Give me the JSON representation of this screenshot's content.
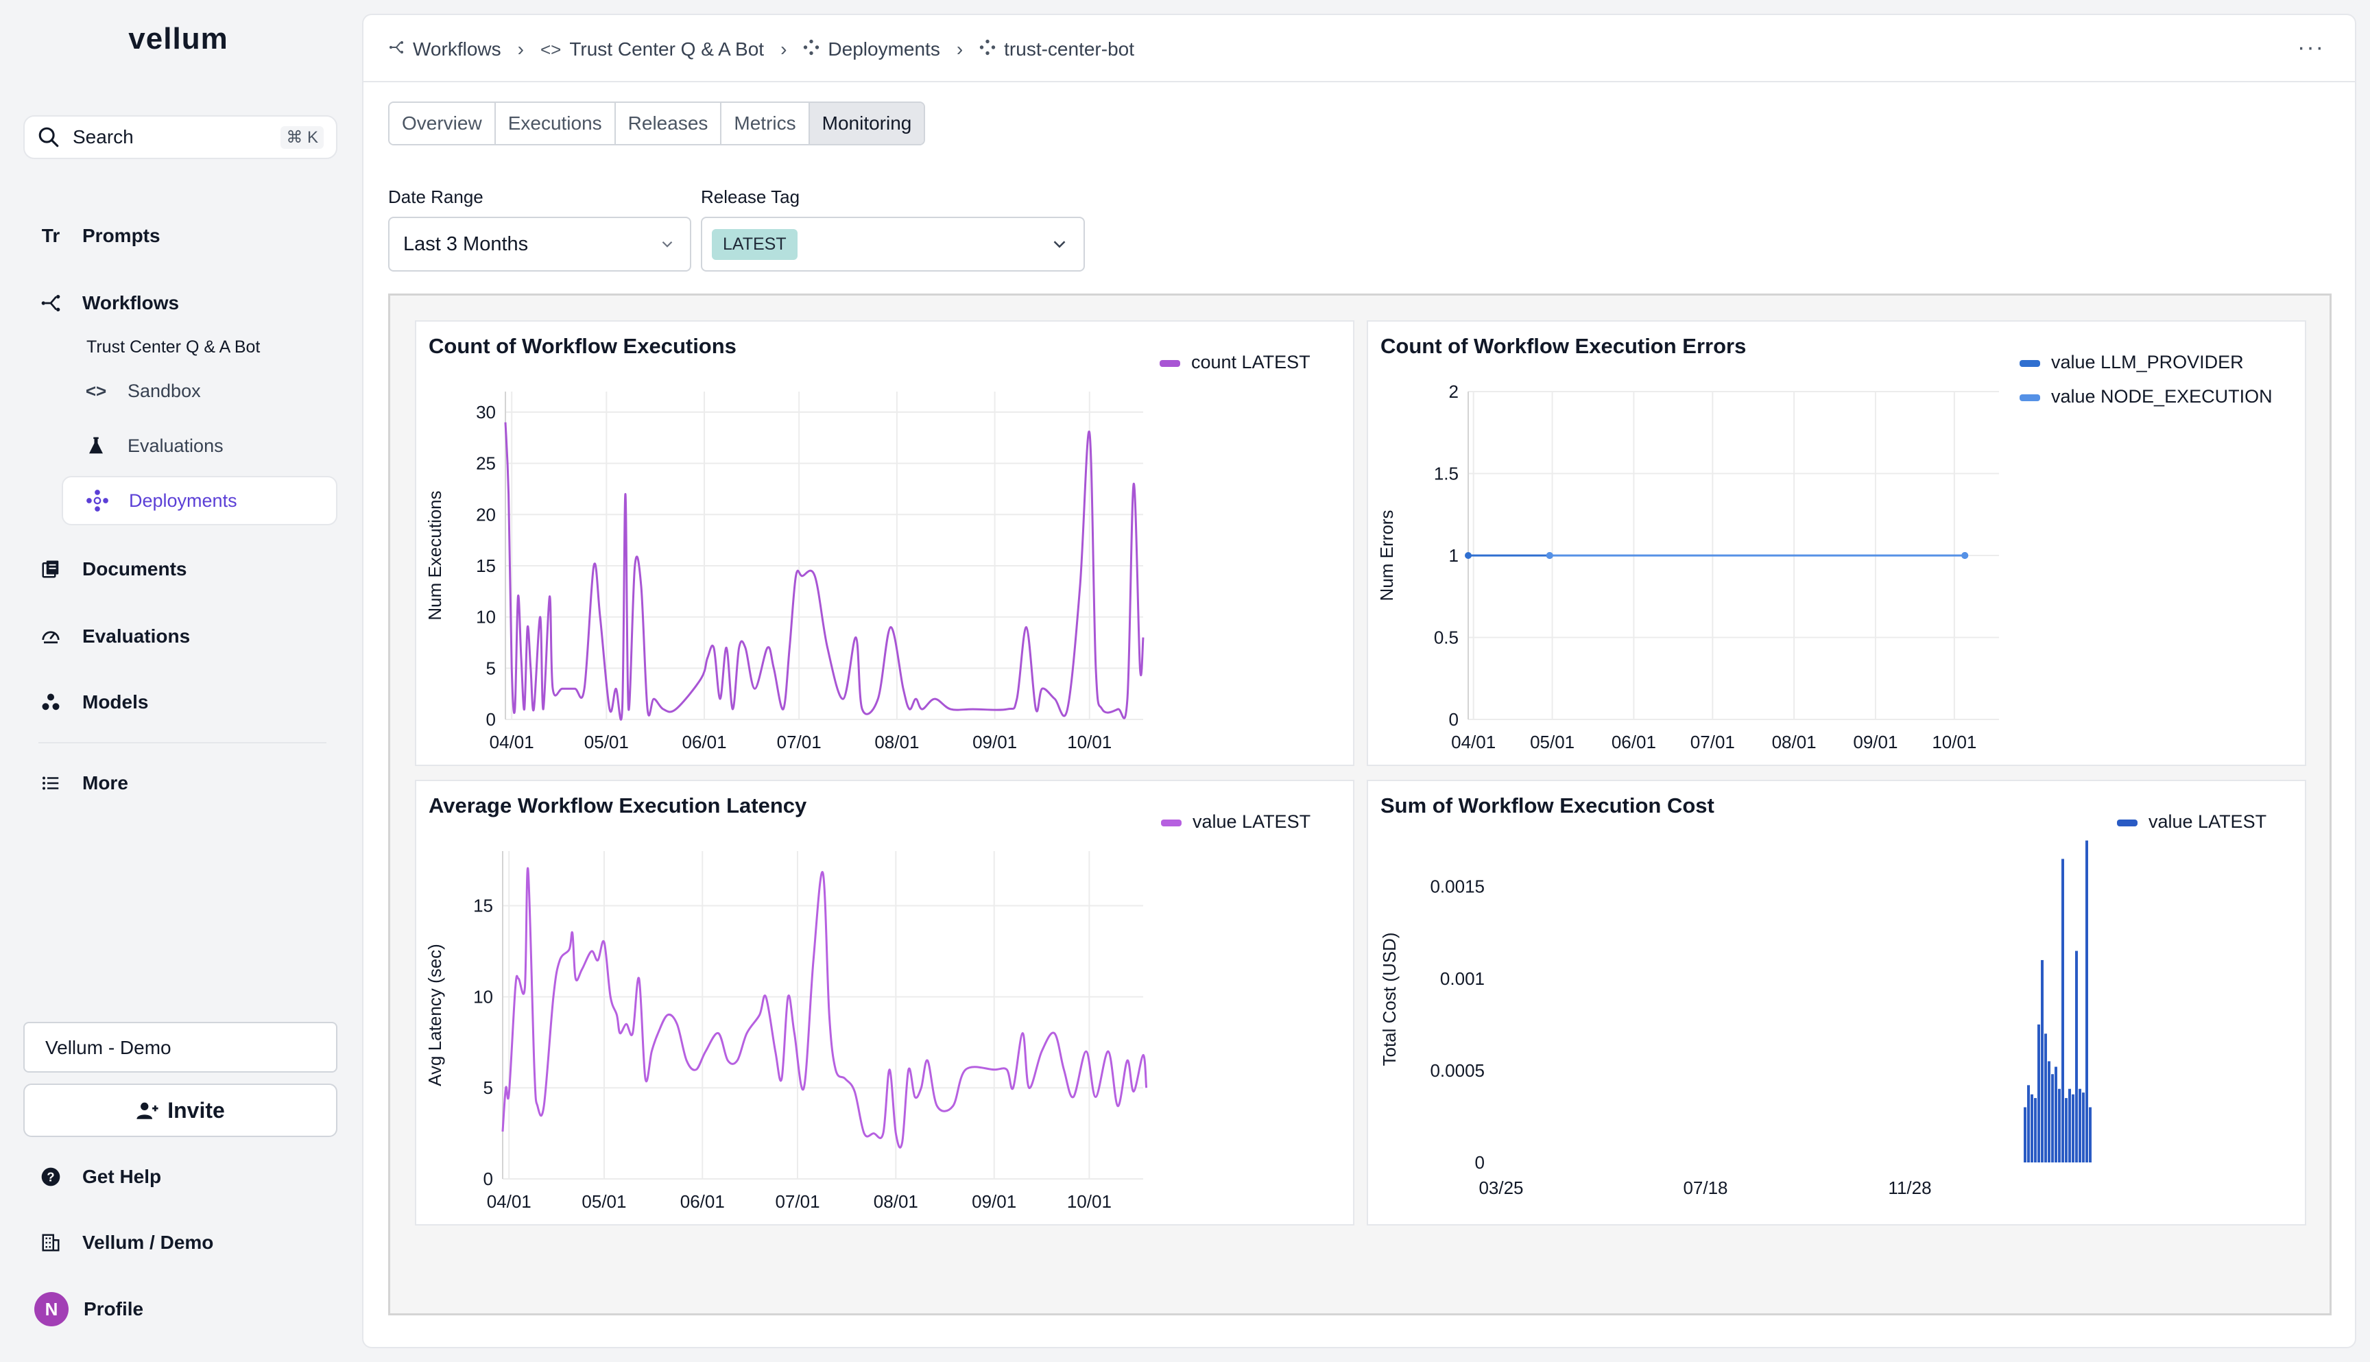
{
  "sidebar": {
    "logo": "vellum",
    "search": {
      "label": "Search",
      "shortcut": "⌘ K"
    },
    "nav": {
      "prompts": "Prompts",
      "workflows": "Workflows",
      "workflow_name": "Trust Center Q & A Bot",
      "sandbox": "Sandbox",
      "evaluations_sub": "Evaluations",
      "deployments": "Deployments",
      "documents": "Documents",
      "evaluations": "Evaluations",
      "models": "Models",
      "more": "More"
    },
    "workspace": "Vellum - Demo",
    "invite": "Invite",
    "get_help": "Get Help",
    "org": "Vellum / Demo",
    "profile": "Profile",
    "avatar_initial": "N",
    "accent_color": "#5b3fd6"
  },
  "header": {
    "breadcrumb": [
      "Workflows",
      "Trust Center Q & A Bot",
      "Deployments",
      "trust-center-bot"
    ],
    "tabs": [
      "Overview",
      "Executions",
      "Releases",
      "Metrics",
      "Monitoring"
    ],
    "active_tab": "Monitoring"
  },
  "filters": {
    "date_range_label": "Date Range",
    "date_range_value": "Last 3 Months",
    "release_tag_label": "Release Tag",
    "release_tag_value": "LATEST"
  },
  "chart_data": [
    {
      "type": "line",
      "title": "Count of Workflow Executions",
      "ylabel": "Num Executions",
      "xlabel": "",
      "ylim": [
        0,
        32
      ],
      "yticks": [
        0,
        5,
        10,
        15,
        20,
        25,
        30
      ],
      "xticks": [
        "04/01",
        "05/01",
        "06/01",
        "07/01",
        "08/01",
        "09/01",
        "10/01"
      ],
      "x_start": "03/30",
      "x_end": "10/18",
      "legend_position": "top-right",
      "series": [
        {
          "name": "count LATEST",
          "color": "#a855d4",
          "points": [
            [
              "03/30",
              29
            ],
            [
              "03/31",
              22
            ],
            [
              "04/01",
              5
            ],
            [
              "04/02",
              1
            ],
            [
              "04/03",
              12
            ],
            [
              "04/04",
              6
            ],
            [
              "04/05",
              1
            ],
            [
              "04/06",
              9
            ],
            [
              "04/07",
              5
            ],
            [
              "04/08",
              1
            ],
            [
              "04/10",
              10
            ],
            [
              "04/11",
              1
            ],
            [
              "04/13",
              12
            ],
            [
              "04/14",
              3
            ],
            [
              "04/17",
              3
            ],
            [
              "04/21",
              3
            ],
            [
              "04/24",
              3
            ],
            [
              "04/27",
              15
            ],
            [
              "04/29",
              10
            ],
            [
              "05/02",
              1
            ],
            [
              "05/04",
              3
            ],
            [
              "05/06",
              1
            ],
            [
              "05/07",
              22
            ],
            [
              "05/08",
              1
            ],
            [
              "05/10",
              15
            ],
            [
              "05/12",
              13
            ],
            [
              "05/14",
              1
            ],
            [
              "05/16",
              2
            ],
            [
              "05/19",
              1
            ],
            [
              "05/23",
              1
            ],
            [
              "05/31",
              4
            ],
            [
              "06/02",
              6
            ],
            [
              "06/04",
              7
            ],
            [
              "06/06",
              2
            ],
            [
              "06/08",
              7
            ],
            [
              "06/10",
              1
            ],
            [
              "06/12",
              7
            ],
            [
              "06/14",
              7
            ],
            [
              "06/17",
              3
            ],
            [
              "06/21",
              7
            ],
            [
              "06/23",
              5
            ],
            [
              "06/26",
              1
            ],
            [
              "06/28",
              7
            ],
            [
              "06/30",
              14
            ],
            [
              "07/02",
              14
            ],
            [
              "07/06",
              14
            ],
            [
              "07/10",
              7
            ],
            [
              "07/15",
              2
            ],
            [
              "07/19",
              8
            ],
            [
              "07/21",
              1
            ],
            [
              "07/26",
              2
            ],
            [
              "07/30",
              9
            ],
            [
              "08/03",
              3
            ],
            [
              "08/05",
              1
            ],
            [
              "08/07",
              2
            ],
            [
              "08/09",
              1
            ],
            [
              "08/13",
              2
            ],
            [
              "08/18",
              1
            ],
            [
              "08/25",
              1
            ],
            [
              "09/05",
              1
            ],
            [
              "09/08",
              2
            ],
            [
              "09/11",
              9
            ],
            [
              "09/14",
              1
            ],
            [
              "09/16",
              3
            ],
            [
              "09/20",
              2
            ],
            [
              "09/24",
              1
            ],
            [
              "09/28",
              13
            ],
            [
              "10/01",
              28
            ],
            [
              "10/03",
              5
            ],
            [
              "10/05",
              1
            ],
            [
              "10/10",
              1
            ],
            [
              "10/13",
              2
            ],
            [
              "10/15",
              23
            ],
            [
              "10/17",
              5
            ],
            [
              "10/18",
              8
            ]
          ]
        }
      ]
    },
    {
      "type": "line",
      "title": "Count of Workflow Execution Errors",
      "ylabel": "Num Errors",
      "xlabel": "",
      "ylim": [
        0,
        2
      ],
      "yticks": [
        0,
        0.5,
        1,
        1.5,
        2
      ],
      "xticks": [
        "04/01",
        "05/01",
        "06/01",
        "07/01",
        "08/01",
        "09/01",
        "10/01"
      ],
      "x_start": "03/30",
      "x_end": "10/18",
      "legend_position": "top-right",
      "series": [
        {
          "name": "value LLM_PROVIDER",
          "color": "#2f6fd0",
          "points": [
            [
              "03/30",
              1
            ],
            [
              "04/30",
              1
            ],
            [
              "10/05",
              1
            ]
          ]
        },
        {
          "name": "value NODE_EXECUTION",
          "color": "#5591e6",
          "points": [
            [
              "04/30",
              1
            ],
            [
              "10/05",
              1
            ]
          ]
        }
      ]
    },
    {
      "type": "line",
      "title": "Average Workflow Execution Latency",
      "ylabel": "Avg Latency (sec)",
      "xlabel": "",
      "ylim": [
        0,
        18
      ],
      "yticks": [
        0,
        5,
        10,
        15
      ],
      "xticks": [
        "04/01",
        "05/01",
        "06/01",
        "07/01",
        "08/01",
        "09/01",
        "10/01"
      ],
      "x_start": "03/30",
      "x_end": "10/18",
      "legend_position": "top-right",
      "series": [
        {
          "name": "value LATEST",
          "color": "#b660e0",
          "points": [
            [
              "03/30",
              2.6
            ],
            [
              "03/31",
              5
            ],
            [
              "04/01",
              4.7
            ],
            [
              "04/03",
              10.5
            ],
            [
              "04/04",
              11
            ],
            [
              "04/06",
              10.5
            ],
            [
              "04/07",
              17
            ],
            [
              "04/09",
              6
            ],
            [
              "04/10",
              4
            ],
            [
              "04/12",
              4
            ],
            [
              "04/15",
              10
            ],
            [
              "04/17",
              12
            ],
            [
              "04/20",
              12.6
            ],
            [
              "04/21",
              13.5
            ],
            [
              "04/22",
              11
            ],
            [
              "04/24",
              11.5
            ],
            [
              "04/27",
              12.5
            ],
            [
              "04/29",
              12
            ],
            [
              "05/01",
              13
            ],
            [
              "05/03",
              10
            ],
            [
              "05/05",
              9
            ],
            [
              "05/06",
              8
            ],
            [
              "05/08",
              8.5
            ],
            [
              "05/10",
              8
            ],
            [
              "05/12",
              11
            ],
            [
              "05/14",
              5.5
            ],
            [
              "05/16",
              7
            ],
            [
              "05/18",
              8
            ],
            [
              "05/21",
              9
            ],
            [
              "05/24",
              8.5
            ],
            [
              "05/27",
              6.5
            ],
            [
              "05/30",
              6
            ],
            [
              "06/02",
              7
            ],
            [
              "06/06",
              8
            ],
            [
              "06/09",
              6.5
            ],
            [
              "06/12",
              6.5
            ],
            [
              "06/15",
              8
            ],
            [
              "06/19",
              9
            ],
            [
              "06/21",
              10
            ],
            [
              "06/24",
              7
            ],
            [
              "06/26",
              5.5
            ],
            [
              "06/28",
              10
            ],
            [
              "06/30",
              8
            ],
            [
              "07/03",
              5
            ],
            [
              "07/06",
              12
            ],
            [
              "07/09",
              16.8
            ],
            [
              "07/11",
              9
            ],
            [
              "07/13",
              6
            ],
            [
              "07/16",
              5.5
            ],
            [
              "07/19",
              4.8
            ],
            [
              "07/22",
              2.5
            ],
            [
              "07/25",
              2.5
            ],
            [
              "07/28",
              2.5
            ],
            [
              "07/30",
              6
            ],
            [
              "08/01",
              2.5
            ],
            [
              "08/03",
              2
            ],
            [
              "08/05",
              6
            ],
            [
              "08/07",
              4.5
            ],
            [
              "08/09",
              5
            ],
            [
              "08/11",
              6.5
            ],
            [
              "08/14",
              4
            ],
            [
              "08/19",
              4
            ],
            [
              "08/23",
              6
            ],
            [
              "09/01",
              6
            ],
            [
              "09/05",
              6
            ],
            [
              "09/07",
              5
            ],
            [
              "09/10",
              8
            ],
            [
              "09/12",
              5
            ],
            [
              "09/16",
              7
            ],
            [
              "09/20",
              8
            ],
            [
              "09/23",
              6
            ],
            [
              "09/26",
              4.5
            ],
            [
              "09/30",
              7
            ],
            [
              "10/03",
              4.5
            ],
            [
              "10/07",
              7
            ],
            [
              "10/10",
              4
            ],
            [
              "10/13",
              6.5
            ],
            [
              "10/15",
              4.8
            ],
            [
              "10/18",
              6.8
            ],
            [
              "10/19",
              5
            ]
          ]
        }
      ]
    },
    {
      "type": "bar",
      "title": "Sum of Workflow Execution Cost",
      "ylabel": "Total Cost (USD)",
      "xlabel": "",
      "ylim": [
        0,
        0.0017
      ],
      "yticks": [
        0,
        0.0005,
        0.001,
        0.0015
      ],
      "ytick_labels": [
        "0",
        "0.0005",
        "0.001",
        "0.0015"
      ],
      "xticks": [
        "03/25",
        "07/18",
        "11/28"
      ],
      "legend_position": "top-right",
      "series": [
        {
          "name": "value LATEST",
          "color": "#2a5bc4",
          "values": [
            0.0003,
            0.00042,
            0.00037,
            0.00035,
            0.00075,
            0.0011,
            0.0007,
            0.00055,
            0.00048,
            0.00052,
            0.0004,
            0.00165,
            0.00035,
            0.0004,
            0.00037,
            0.00115,
            0.0004,
            0.00038,
            0.00175,
            0.0003
          ]
        }
      ]
    }
  ]
}
